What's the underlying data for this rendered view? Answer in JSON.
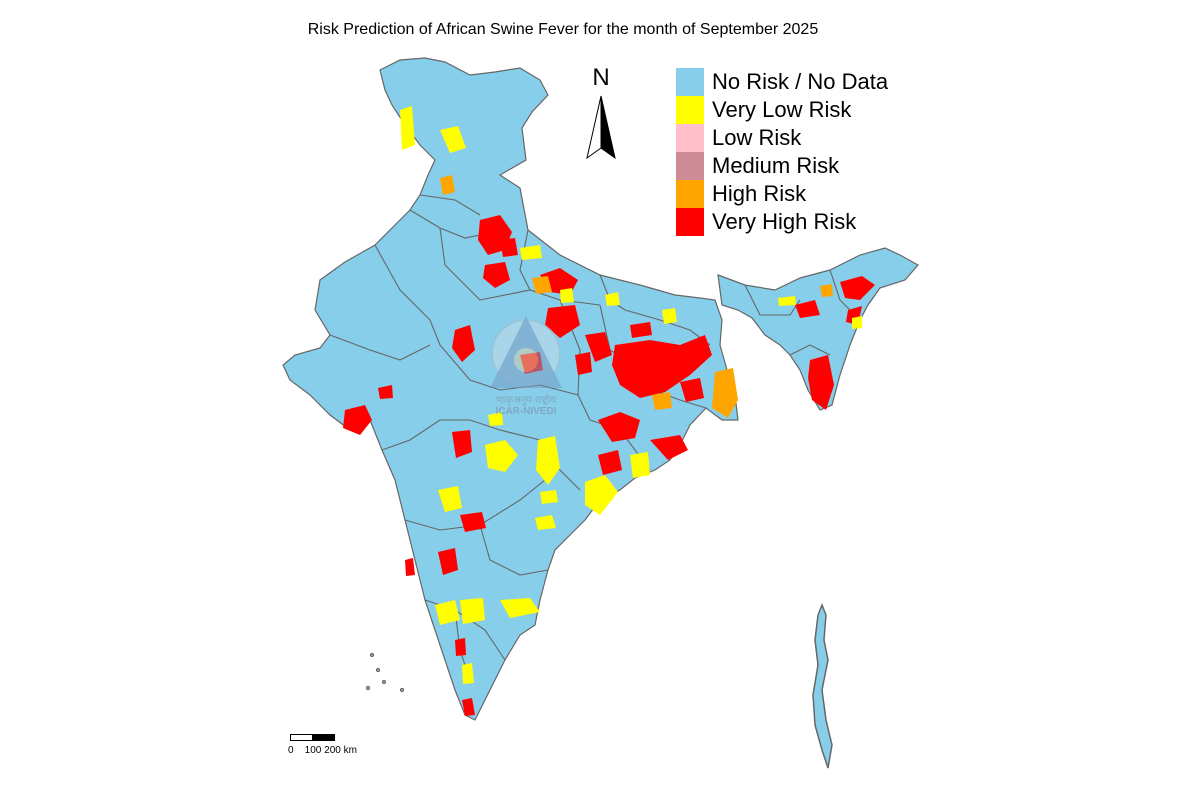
{
  "title": "Risk Prediction of African Swine Fever for the month of September 2025",
  "legend": {
    "items": [
      {
        "label": "No Risk / No Data",
        "color": "#87CEEB"
      },
      {
        "label": "Very Low Risk",
        "color": "#FFFF00"
      },
      {
        "label": "Low Risk",
        "color": "#FFC0CB"
      },
      {
        "label": "Medium Risk",
        "color": "#CD8C95"
      },
      {
        "label": "High Risk",
        "color": "#FFA500"
      },
      {
        "label": "Very High Risk",
        "color": "#FF0000"
      }
    ]
  },
  "north_arrow": {
    "label": "N",
    "icon": "north-arrow-icon"
  },
  "scale_bar": {
    "label": "0    100 200 km"
  },
  "watermark": {
    "line1": "भाकृअनुप-राष्ट्रीय",
    "line2": "ICAR-NIVEDI"
  },
  "colors": {
    "border": "#666666",
    "base": "#87CEEB"
  }
}
